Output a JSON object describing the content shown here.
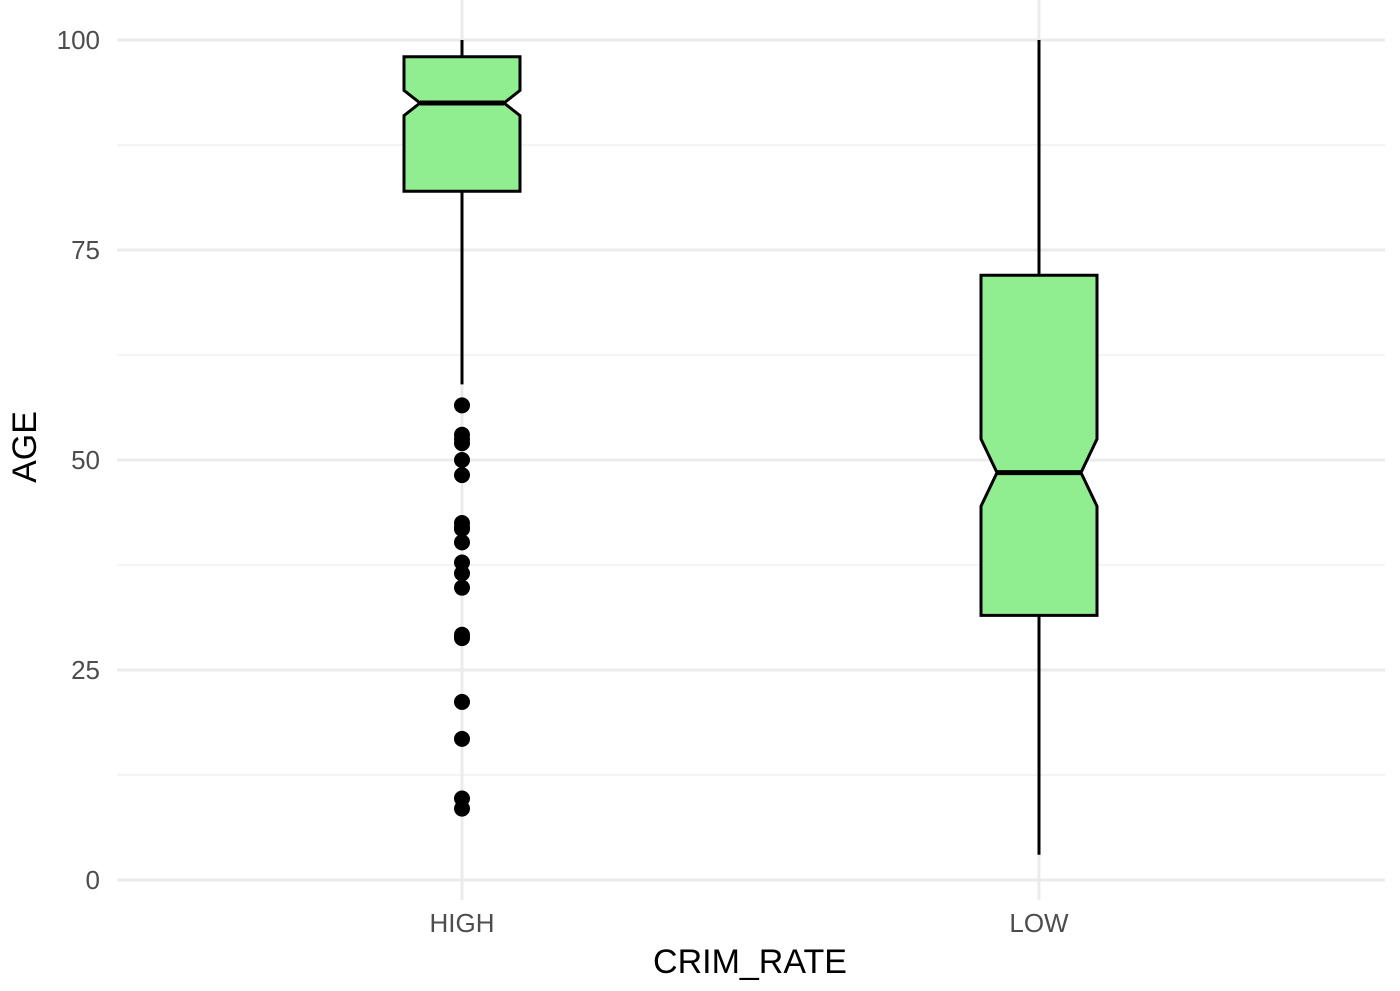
{
  "chart_data": {
    "type": "boxplot",
    "title": "",
    "xlabel": "CRIM_RATE",
    "ylabel": "AGE",
    "ylim": [
      0,
      100
    ],
    "yticks": [
      0,
      25,
      50,
      75,
      100
    ],
    "yticks_text": [
      "0",
      "25",
      "50",
      "75",
      "100"
    ],
    "grid": true,
    "notched": true,
    "fill_color": "#90EE90",
    "categories": [
      "HIGH",
      "LOW"
    ],
    "boxes": [
      {
        "category": "HIGH",
        "whisker_low": 59,
        "q1": 82,
        "median": 92.5,
        "q3": 98,
        "whisker_high": 100,
        "notch_low": 91,
        "notch_high": 94,
        "outliers": [
          56.5,
          53,
          52.5,
          52,
          50,
          48.2,
          42.5,
          42,
          41.8,
          40.2,
          37.8,
          36.5,
          34.8,
          29.2,
          28.8,
          21.2,
          16.8,
          9.7,
          8.5
        ]
      },
      {
        "category": "LOW",
        "whisker_low": 3,
        "q1": 31.5,
        "median": 48.5,
        "q3": 72,
        "whisker_high": 100,
        "notch_low": 44.5,
        "notch_high": 52.5,
        "outliers": []
      }
    ]
  }
}
